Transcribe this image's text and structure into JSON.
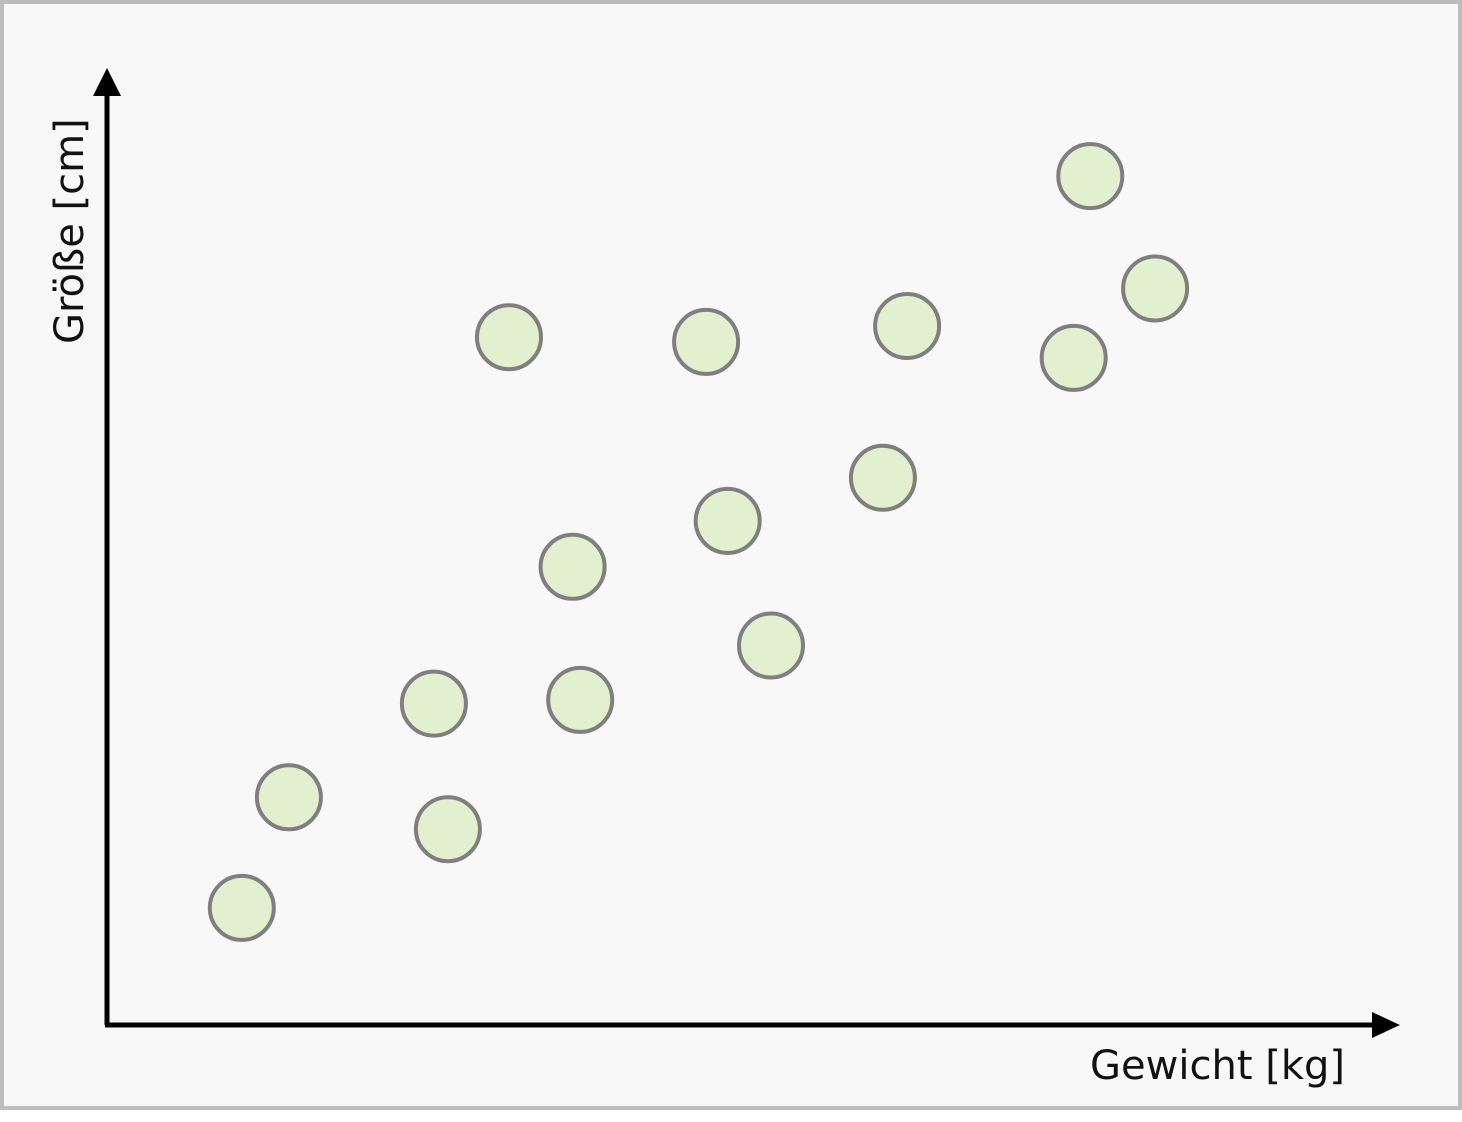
{
  "chart_data": {
    "type": "scatter",
    "xlabel": "Gewicht [kg]",
    "ylabel": "Größe [cm]",
    "xlim": [
      0,
      100
    ],
    "ylim": [
      0,
      100
    ],
    "grid": false,
    "x_ticks": false,
    "y_ticks": false,
    "points": [
      {
        "x": 10.6,
        "y": 12.5
      },
      {
        "x": 14.3,
        "y": 24.3
      },
      {
        "x": 25.7,
        "y": 34.3
      },
      {
        "x": 26.8,
        "y": 20.9
      },
      {
        "x": 31.6,
        "y": 73.4
      },
      {
        "x": 36.6,
        "y": 48.9
      },
      {
        "x": 37.2,
        "y": 34.7
      },
      {
        "x": 47.1,
        "y": 72.9
      },
      {
        "x": 48.8,
        "y": 53.8
      },
      {
        "x": 52.2,
        "y": 40.5
      },
      {
        "x": 61.0,
        "y": 58.4
      },
      {
        "x": 62.9,
        "y": 74.6
      },
      {
        "x": 76.0,
        "y": 71.2
      },
      {
        "x": 77.3,
        "y": 90.6
      },
      {
        "x": 82.4,
        "y": 78.6
      }
    ]
  },
  "style": {
    "frame_background": "#f8f8f8",
    "frame_border": "#bdbdbd",
    "axis_color": "#000000",
    "point_fill": "#e3f0cf",
    "point_stroke": "#7f7f7f"
  }
}
